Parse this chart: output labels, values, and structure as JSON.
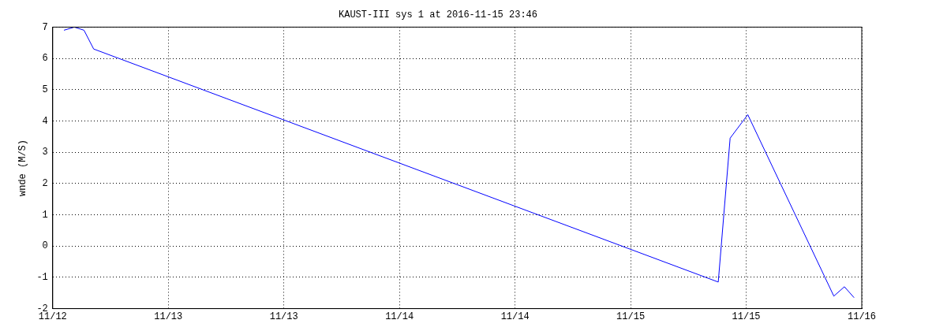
{
  "chart_data": {
    "type": "line",
    "title": "KAUST-III sys 1 at 2016-11-15 23:46",
    "ylabel": "wnde (M/S)",
    "x": [
      "2016-11-12T13:10",
      "2016-11-12T14:15",
      "2016-11-12T15:15",
      "2016-11-12T16:15",
      "2016-11-15T09:06",
      "2016-11-15T10:20",
      "2016-11-15T12:10",
      "2016-11-15T21:06",
      "2016-11-15T22:12",
      "2016-11-15T23:12"
    ],
    "series": [
      {
        "color": "#0000ff",
        "values": [
          6.9,
          7.0,
          6.9,
          6.3,
          -1.15,
          3.45,
          4.2,
          -1.6,
          -1.3,
          -1.65
        ]
      }
    ],
    "xlim": [
      "2016-11-12T12:00",
      "2016-11-16T00:00"
    ],
    "xticks": [
      {
        "value": "2016-11-12T12:00",
        "label": "11/12"
      },
      {
        "value": "2016-11-13T00:00",
        "label": "11/13"
      },
      {
        "value": "2016-11-13T12:00",
        "label": "11/13"
      },
      {
        "value": "2016-11-14T00:00",
        "label": "11/14"
      },
      {
        "value": "2016-11-14T12:00",
        "label": "11/14"
      },
      {
        "value": "2016-11-15T00:00",
        "label": "11/15"
      },
      {
        "value": "2016-11-15T12:00",
        "label": "11/15"
      },
      {
        "value": "2016-11-16T00:00",
        "label": "11/16"
      }
    ],
    "ylim": [
      -2,
      7
    ],
    "yticks": [
      -2,
      -1,
      0,
      1,
      2,
      3,
      4,
      5,
      6,
      7
    ],
    "grid": true,
    "legend": false,
    "marker": "none",
    "line_style": "solid"
  }
}
